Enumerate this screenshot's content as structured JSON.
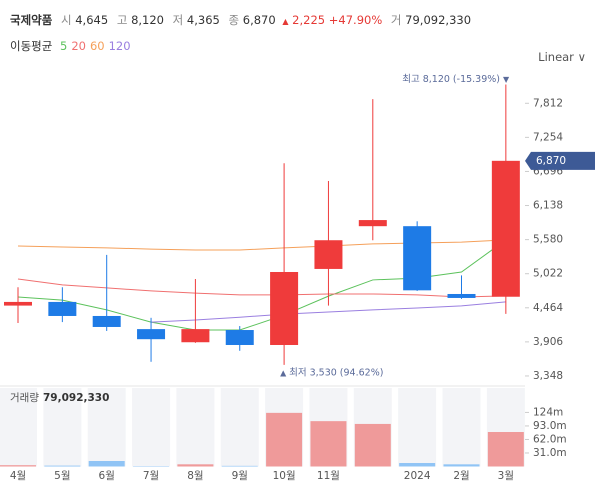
{
  "chart_data": {
    "type": "candlestick",
    "header": {
      "name": "국제약품",
      "open_label": "시",
      "open": {
        "value": 4645,
        "label": "4,645"
      },
      "high_label": "고",
      "high": {
        "value": 8120,
        "label": "8,120"
      },
      "low_label": "저",
      "low": {
        "value": 4365,
        "label": "4,365"
      },
      "close_label": "종",
      "close": {
        "value": 6870,
        "label": "6,870"
      },
      "change": {
        "value": 2225,
        "label": "2,225"
      },
      "change_pct": {
        "value": 47.9,
        "label": "+47.90%"
      },
      "volume_label": "거",
      "volume": {
        "value": 79092330,
        "label": "79,092,330"
      }
    },
    "ma_label": "이동평균",
    "scale_label": "Linear",
    "categories": [
      "4월",
      "5월",
      "6월",
      "7월",
      "8월",
      "9월",
      "10월",
      "11월",
      null,
      "2024",
      "2월",
      "3월"
    ],
    "candles": {
      "open": [
        4500,
        4560,
        4330,
        4115,
        3900,
        4100,
        3855,
        5100,
        5800,
        5800,
        4690,
        4645
      ],
      "high": [
        4800,
        4800,
        5330,
        4300,
        4935,
        4165,
        6830,
        6540,
        7880,
        5880,
        4995,
        8120
      ],
      "low": [
        4215,
        4230,
        4085,
        3580,
        3890,
        3760,
        3530,
        4500,
        5570,
        4740,
        4610,
        4365
      ],
      "close": [
        4560,
        4330,
        4150,
        3950,
        4115,
        3855,
        5050,
        5570,
        5900,
        4750,
        4625,
        6870
      ],
      "up_color": "#ef3b3b",
      "down_color": "#1e7be6"
    },
    "moving_averages": [
      {
        "name": "5",
        "color": "#5cc25c",
        "values": [
          4640,
          4590,
          4430,
          4230,
          4100,
          4100,
          4345,
          4655,
          4920,
          4950,
          5050,
          5575
        ]
      },
      {
        "name": "20",
        "color": "#f07070",
        "values": [
          4935,
          4840,
          4790,
          4740,
          4705,
          4675,
          4675,
          4690,
          4690,
          4675,
          4640,
          4660
        ]
      },
      {
        "name": "60",
        "color": "#f5a05a",
        "values": [
          5475,
          5460,
          5445,
          5425,
          5410,
          5410,
          5445,
          5475,
          5510,
          5525,
          5540,
          5575
        ]
      },
      {
        "name": "120",
        "color": "#9a7fe0",
        "values": [
          null,
          null,
          null,
          4230,
          4265,
          4310,
          4360,
          4395,
          4430,
          4460,
          4495,
          4560
        ]
      }
    ],
    "high_annotation": "최고 8,120 (-15.39%)",
    "low_annotation": "최저 3,530 (94.62%)",
    "ylim": [
      3200,
      8275
    ],
    "yticks": [
      {
        "value": 3348,
        "label": "3,348"
      },
      {
        "value": 3906,
        "label": "3,906"
      },
      {
        "value": 4464,
        "label": "4,464"
      },
      {
        "value": 5022,
        "label": "5,022"
      },
      {
        "value": 5580,
        "label": "5,580"
      },
      {
        "value": 6138,
        "label": "6,138"
      },
      {
        "value": 6696,
        "label": "6,696"
      },
      {
        "value": 7254,
        "label": "7,254"
      },
      {
        "value": 7812,
        "label": "7,812"
      }
    ],
    "volume_panel": {
      "label": "거래량",
      "values": [
        3000000,
        2000000,
        12600000,
        1000000,
        5000000,
        1500000,
        123000000,
        104000000,
        97600000,
        8000000,
        5000000,
        79092330
      ],
      "ylim": [
        0,
        180000000
      ],
      "yticks": [
        {
          "value": 31000000,
          "label": "31.0m"
        },
        {
          "value": 62000000,
          "label": "62.0m"
        },
        {
          "value": 93000000,
          "label": "93.0m"
        },
        {
          "value": 124000000,
          "label": "124m"
        }
      ]
    }
  }
}
